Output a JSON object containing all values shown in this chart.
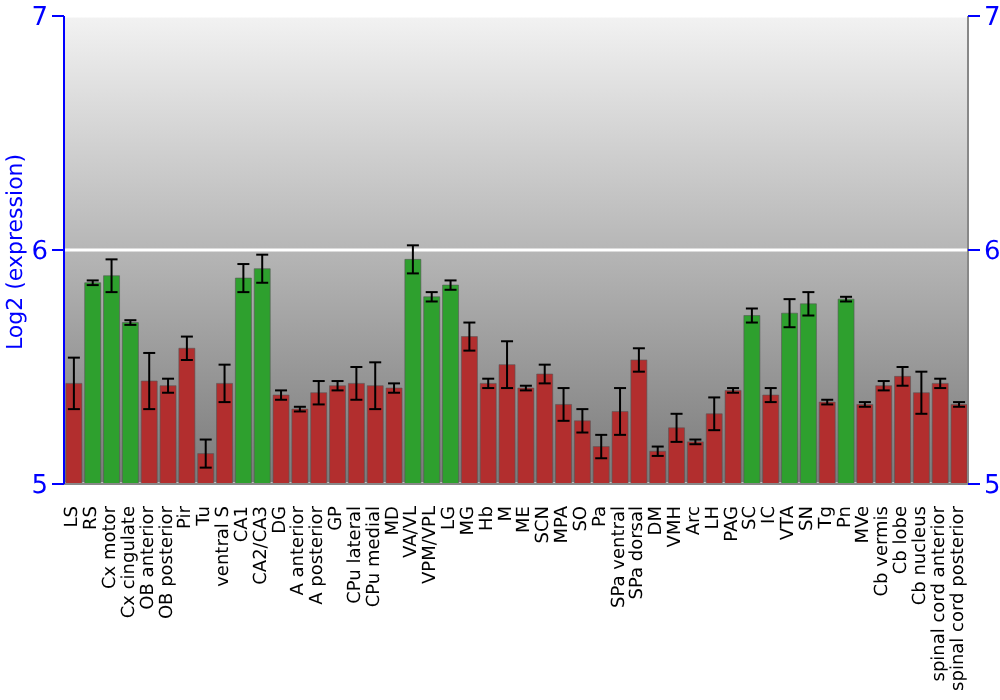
{
  "chart_data": {
    "type": "bar",
    "ylabel": "Log2 (expression)",
    "categories": [
      "LS",
      "RS",
      "Cx motor",
      "Cx cingulate",
      "OB anterior",
      "OB posterior",
      "Pir",
      "Tu",
      "ventral S",
      "CA1",
      "CA2/CA3",
      "DG",
      "A anterior",
      "A posterior",
      "GP",
      "CPu lateral",
      "CPu medial",
      "MD",
      "VA/VL",
      "VPM/VPL",
      "LG",
      "MG",
      "Hb",
      "M",
      "ME",
      "SCN",
      "MPA",
      "SO",
      "Pa",
      "SPa ventral",
      "SPa dorsal",
      "DM",
      "VMH",
      "Arc",
      "LH",
      "PAG",
      "SC",
      "IC",
      "VTA",
      "SN",
      "Tg",
      "Pn",
      "MVe",
      "Cb vermis",
      "Cb lobe",
      "Cb nucleus",
      "spinal cord anterior",
      "spinal cord posterior"
    ],
    "values": [
      5.43,
      5.86,
      5.89,
      5.69,
      5.44,
      5.42,
      5.58,
      5.13,
      5.43,
      5.88,
      5.92,
      5.38,
      5.32,
      5.39,
      5.42,
      5.43,
      5.42,
      5.41,
      5.96,
      5.8,
      5.85,
      5.63,
      5.43,
      5.51,
      5.41,
      5.47,
      5.34,
      5.27,
      5.16,
      5.31,
      5.53,
      5.14,
      5.24,
      5.18,
      5.3,
      5.4,
      5.72,
      5.38,
      5.73,
      5.77,
      5.35,
      5.79,
      5.34,
      5.42,
      5.46,
      5.39,
      5.43,
      5.34
    ],
    "errors": [
      0.11,
      0.01,
      0.07,
      0.01,
      0.12,
      0.03,
      0.05,
      0.06,
      0.08,
      0.06,
      0.06,
      0.02,
      0.01,
      0.05,
      0.02,
      0.07,
      0.1,
      0.02,
      0.06,
      0.02,
      0.02,
      0.06,
      0.02,
      0.1,
      0.01,
      0.04,
      0.07,
      0.05,
      0.05,
      0.1,
      0.05,
      0.02,
      0.06,
      0.01,
      0.07,
      0.01,
      0.03,
      0.03,
      0.06,
      0.05,
      0.01,
      0.01,
      0.01,
      0.02,
      0.04,
      0.09,
      0.02,
      0.01
    ],
    "colors": [
      "#b22e2e",
      "#2ea02e",
      "#2ea02e",
      "#2ea02e",
      "#b22e2e",
      "#b22e2e",
      "#b22e2e",
      "#b22e2e",
      "#b22e2e",
      "#2ea02e",
      "#2ea02e",
      "#b22e2e",
      "#b22e2e",
      "#b22e2e",
      "#b22e2e",
      "#b22e2e",
      "#b22e2e",
      "#b22e2e",
      "#2ea02e",
      "#2ea02e",
      "#2ea02e",
      "#b22e2e",
      "#b22e2e",
      "#b22e2e",
      "#b22e2e",
      "#b22e2e",
      "#b22e2e",
      "#b22e2e",
      "#b22e2e",
      "#b22e2e",
      "#b22e2e",
      "#b22e2e",
      "#b22e2e",
      "#b22e2e",
      "#b22e2e",
      "#b22e2e",
      "#2ea02e",
      "#b22e2e",
      "#2ea02e",
      "#2ea02e",
      "#b22e2e",
      "#2ea02e",
      "#b22e2e",
      "#b22e2e",
      "#b22e2e",
      "#b22e2e",
      "#b22e2e",
      "#b22e2e"
    ],
    "ylim": [
      5,
      7
    ],
    "yticks": [
      5,
      6,
      7
    ],
    "y2lim": [
      5,
      7
    ],
    "y2ticks": [
      5,
      6,
      7
    ],
    "grid": "y"
  }
}
